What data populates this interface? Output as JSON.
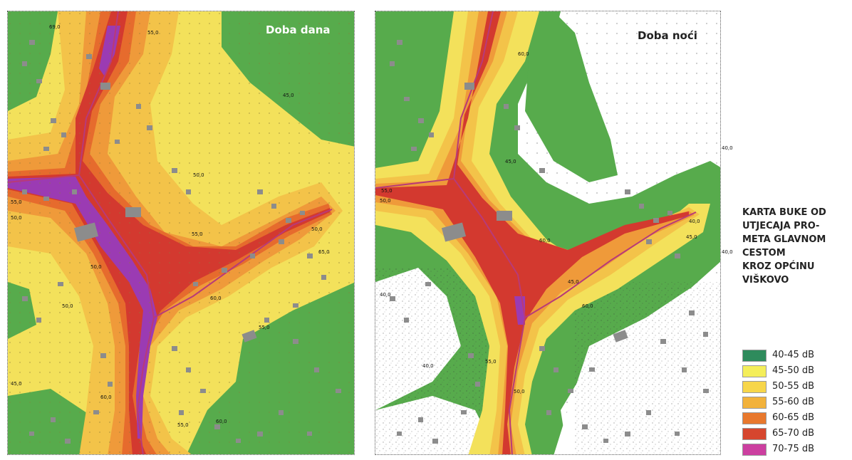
{
  "maps": {
    "day": {
      "title": "Doba dana"
    },
    "night": {
      "title": "Doba noći"
    }
  },
  "contour_labels": {
    "day": [
      "69,0",
      "55,0",
      "45,0",
      "50,0",
      "55,0",
      "50,0",
      "55,0",
      "50,0",
      "60,0",
      "65,0",
      "50,0",
      "55,0",
      "45,0",
      "50,0",
      "55,0",
      "60,0",
      "60,0"
    ],
    "night": [
      "60,0",
      "45,0",
      "55,0",
      "50,0",
      "45,0",
      "60,0",
      "40,0",
      "40,0",
      "45,0",
      "55,0",
      "40,0",
      "50,0",
      "60,0"
    ]
  },
  "edge_labels": [
    "40,0",
    "40,0"
  ],
  "legend": {
    "heading_lines": [
      "KARTA BUKE OD",
      "UTJECAJA PRO-",
      "META GLAVNOM",
      "CESTOM",
      "KROZ OPĆINU",
      "VIŠKOVO"
    ],
    "items": [
      {
        "label": "40-45 dB",
        "color": "#2e8b5c"
      },
      {
        "label": "45-50 dB",
        "color": "#f4ee5a"
      },
      {
        "label": "50-55 dB",
        "color": "#f7d64a"
      },
      {
        "label": "55-60 dB",
        "color": "#f2b23b"
      },
      {
        "label": "60-65 dB",
        "color": "#e8782d"
      },
      {
        "label": "65-70 dB",
        "color": "#d6462e"
      },
      {
        "label": "70-75 dB",
        "color": "#cc3fa0"
      }
    ]
  },
  "colors": {
    "green": "#57ab4c",
    "yellow": "#f3e15b",
    "light_orange": "#f3c349",
    "orange": "#ef9a3a",
    "dark_orange": "#e66b2d",
    "red": "#d3392f",
    "purple": "#9b3bb3",
    "building": "#8c8c8c",
    "white": "#ffffff"
  }
}
